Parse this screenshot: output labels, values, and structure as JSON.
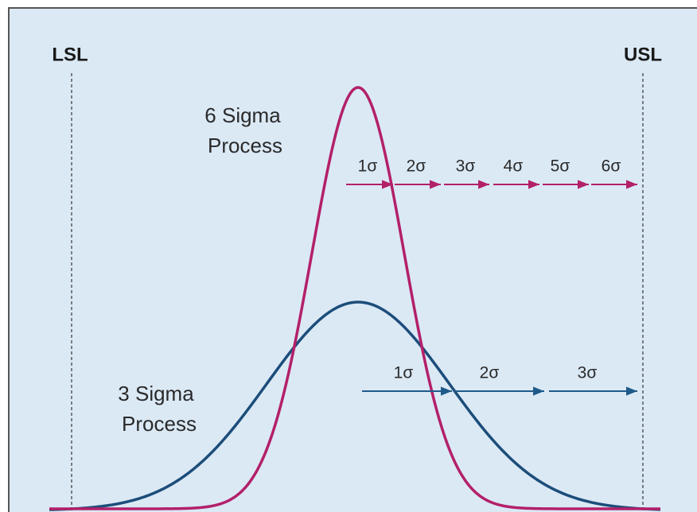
{
  "limits": {
    "lower": "LSL",
    "upper": "USL"
  },
  "six_sigma": {
    "title": [
      "6 Sigma",
      "Process"
    ],
    "steps": [
      "1σ",
      "2σ",
      "3σ",
      "4σ",
      "5σ",
      "6σ"
    ]
  },
  "three_sigma": {
    "title": [
      "3 Sigma",
      "Process"
    ],
    "steps": [
      "1σ",
      "2σ",
      "3σ"
    ]
  }
}
